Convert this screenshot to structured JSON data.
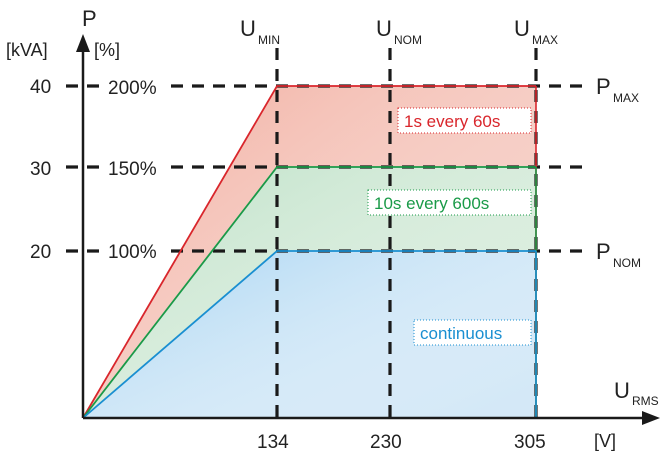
{
  "chart_data": {
    "type": "area",
    "axis_labels": {
      "y_symbol": "P",
      "y_unit_kva": "[kVA]",
      "y_unit_pct": "[%]",
      "x_symbol": "U",
      "x_symbol_sub": "RMS",
      "x_unit": "[V]"
    },
    "x_ticks": [
      "134",
      "230",
      "305"
    ],
    "y_ticks": [
      "20",
      "30",
      "40"
    ],
    "pct_ticks": [
      "100%",
      "150%",
      "200%"
    ],
    "top_labels": [
      {
        "main": "U",
        "sub": "MIN"
      },
      {
        "main": "U",
        "sub": "NOM"
      },
      {
        "main": "U",
        "sub": "MAX"
      }
    ],
    "right_labels": [
      {
        "main": "P",
        "sub": "MAX"
      },
      {
        "main": "P",
        "sub": "NOM"
      }
    ],
    "series": [
      {
        "label": "1s every 60s",
        "color": "#d9262c",
        "fill": "#f4c6bc",
        "points": [
          [
            0,
            0
          ],
          [
            134,
            40
          ],
          [
            305,
            40
          ]
        ]
      },
      {
        "label": "10s every 600s",
        "color": "#1a9a48",
        "fill": "#d4ead8",
        "points": [
          [
            0,
            0
          ],
          [
            134,
            30
          ],
          [
            305,
            30
          ]
        ]
      },
      {
        "label": "continuous",
        "color": "#1a8fd1",
        "fill": "#cfe6f6",
        "points": [
          [
            0,
            0
          ],
          [
            134,
            20
          ],
          [
            305,
            20
          ]
        ]
      }
    ],
    "gridlines": {
      "x": [
        134,
        230,
        305
      ],
      "y": [
        20,
        30,
        40
      ],
      "style": "dashed"
    },
    "grid": true,
    "xlim": [
      0,
      305
    ],
    "ylim": [
      0,
      40
    ]
  }
}
